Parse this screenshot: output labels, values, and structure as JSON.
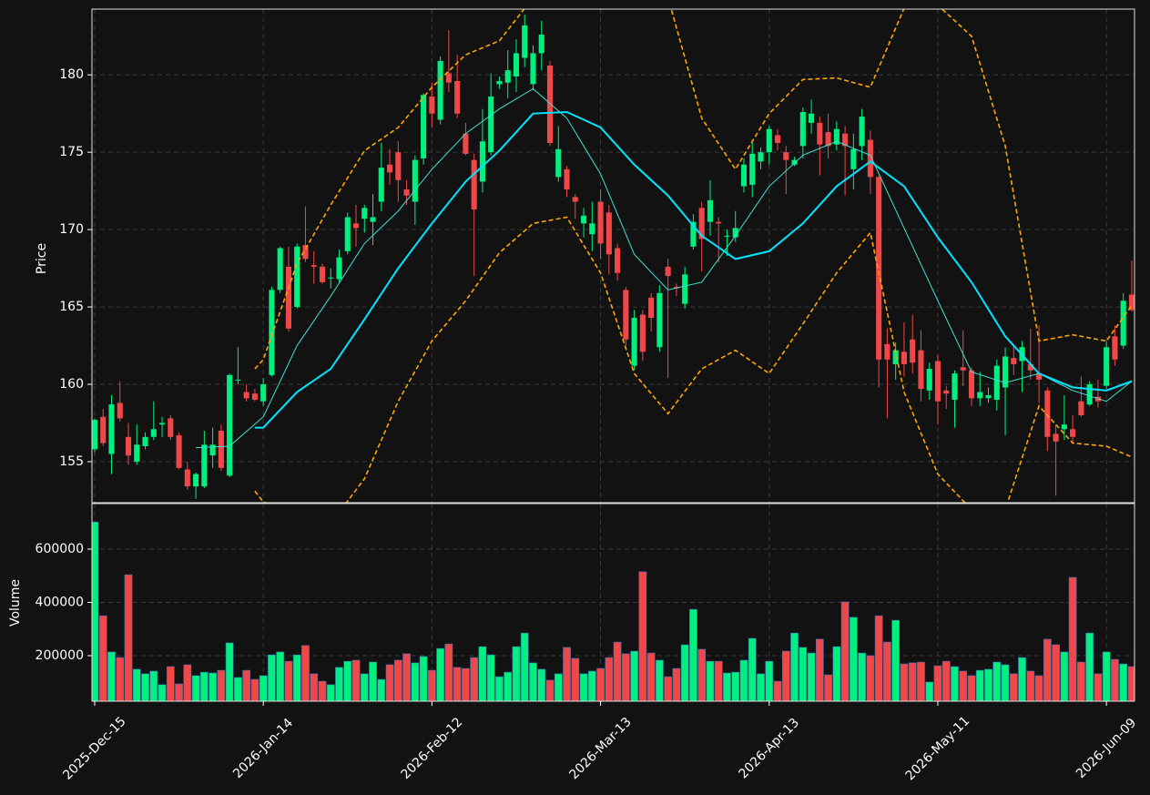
{
  "chart_data": [
    {
      "type": "candlestick",
      "ylabel": "Price",
      "categories": [
        "2025-Dec-15",
        null,
        null,
        null,
        null,
        null,
        null,
        null,
        null,
        null,
        null,
        null,
        null,
        null,
        null,
        null,
        null,
        null,
        null,
        null,
        "2026-Jan-14",
        null,
        null,
        null,
        null,
        null,
        null,
        null,
        null,
        null,
        null,
        null,
        null,
        null,
        null,
        null,
        null,
        null,
        null,
        null,
        "2026-Feb-12",
        null,
        null,
        null,
        null,
        null,
        null,
        null,
        null,
        null,
        null,
        null,
        null,
        null,
        null,
        null,
        null,
        null,
        null,
        null,
        "2026-Mar-13",
        null,
        null,
        null,
        null,
        null,
        null,
        null,
        null,
        null,
        null,
        null,
        null,
        null,
        null,
        null,
        null,
        null,
        null,
        null,
        "2026-Apr-13",
        null,
        null,
        null,
        null,
        null,
        null,
        null,
        null,
        null,
        null,
        null,
        null,
        null,
        null,
        null,
        null,
        null,
        null,
        null,
        "2026-May-11",
        null,
        null,
        null,
        null,
        null,
        null,
        null,
        null,
        null,
        null,
        null,
        null,
        null,
        null,
        null,
        null,
        null,
        null,
        null,
        "2026-Jun-09",
        null,
        null,
        null
      ],
      "open": [
        155.8,
        157.9,
        155.5,
        158.8,
        156.6,
        155.0,
        156.0,
        156.6,
        157.4,
        157.8,
        156.7,
        154.5,
        153.4,
        153.4,
        155.4,
        157.0,
        154.1,
        160.3,
        159.5,
        159.4,
        158.9,
        160.6,
        166.1,
        167.6,
        165.0,
        169.0,
        167.7,
        167.6,
        166.9,
        166.8,
        168.6,
        170.4,
        170.7,
        170.5,
        171.8,
        174.2,
        175.0,
        172.6,
        171.8,
        174.6,
        178.6,
        177.1,
        180.1,
        179.6,
        176.2,
        174.5,
        173.1,
        175.0,
        179.4,
        179.5,
        179.9,
        181.1,
        179.4,
        181.4,
        180.6,
        173.4,
        173.9,
        172.1,
        170.4,
        169.7,
        171.8,
        171.1,
        168.8,
        166.1,
        161.2,
        164.5,
        165.6,
        162.4,
        167.6,
        166.3,
        165.2,
        168.9,
        171.4,
        170.5,
        170.5,
        169.6,
        169.5,
        172.8,
        172.9,
        174.4,
        175.0,
        176.1,
        175.0,
        174.2,
        175.4,
        176.9,
        176.9,
        176.3,
        175.5,
        176.2,
        173.9,
        175.4,
        175.8,
        173.4,
        162.6,
        161.3,
        162.1,
        162.9,
        162.2,
        159.6,
        161.5,
        159.6,
        159.0,
        161.1,
        160.9,
        159.1,
        159.1,
        159.0,
        159.8,
        161.7,
        161.5,
        161.3,
        160.7,
        159.6,
        156.8,
        157.1,
        157.1,
        158.9,
        158.7,
        159.2,
        159.9,
        163.1,
        162.5,
        165.8
      ],
      "high": [
        157.8,
        158.4,
        159.3,
        160.2,
        157.5,
        157.4,
        156.9,
        158.9,
        157.9,
        158.0,
        156.9,
        155.0,
        154.3,
        157.0,
        157.2,
        157.4,
        160.7,
        162.4,
        160.0,
        159.7,
        160.4,
        166.3,
        168.9,
        168.9,
        169.1,
        171.5,
        168.6,
        167.8,
        167.5,
        168.7,
        171.1,
        171.6,
        171.6,
        172.3,
        175.6,
        175.2,
        175.7,
        173.2,
        174.8,
        178.8,
        179.5,
        181.2,
        182.9,
        181.3,
        176.9,
        174.9,
        177.8,
        180.1,
        179.9,
        181.6,
        182.3,
        183.9,
        181.9,
        183.5,
        180.9,
        176.7,
        174.1,
        172.3,
        171.4,
        171.8,
        172.6,
        171.6,
        169.1,
        166.3,
        164.8,
        164.8,
        165.9,
        166.4,
        168.1,
        166.5,
        167.6,
        171.0,
        171.8,
        173.2,
        170.8,
        170.0,
        171.2,
        174.6,
        175.8,
        175.3,
        176.7,
        176.5,
        175.4,
        174.7,
        177.9,
        178.4,
        177.3,
        177.5,
        177.0,
        176.7,
        176.2,
        177.8,
        176.4,
        173.5,
        163.6,
        162.7,
        164.0,
        164.5,
        163.5,
        161.4,
        161.9,
        159.9,
        160.9,
        163.5,
        161.1,
        160.8,
        159.8,
        161.6,
        162.4,
        162.6,
        162.8,
        163.6,
        163.8,
        159.8,
        157.4,
        159.3,
        158.0,
        160.5,
        160.2,
        160.3,
        162.8,
        163.8,
        165.9,
        168.0
      ],
      "low": [
        155.6,
        156.0,
        154.2,
        157.6,
        154.8,
        154.8,
        155.8,
        156.4,
        156.6,
        156.4,
        154.5,
        153.2,
        152.6,
        153.3,
        154.6,
        154.4,
        154.0,
        160.0,
        158.9,
        158.9,
        158.6,
        160.5,
        165.9,
        163.4,
        164.9,
        167.9,
        166.5,
        166.5,
        166.2,
        166.6,
        168.4,
        168.9,
        169.8,
        169.0,
        171.2,
        172.9,
        171.8,
        171.6,
        170.3,
        174.2,
        176.6,
        176.8,
        178.9,
        177.2,
        174.8,
        167.0,
        172.4,
        174.8,
        179.1,
        178.5,
        178.9,
        180.5,
        179.0,
        180.3,
        175.4,
        173.1,
        172.1,
        170.7,
        169.5,
        168.6,
        168.1,
        167.1,
        166.7,
        162.5,
        160.9,
        161.5,
        163.4,
        162.1,
        160.4,
        165.7,
        164.9,
        168.7,
        167.3,
        169.6,
        167.9,
        168.3,
        169.2,
        172.4,
        172.1,
        173.9,
        174.2,
        175.1,
        172.3,
        174.1,
        174.6,
        176.2,
        173.5,
        174.6,
        175.1,
        172.2,
        172.6,
        174.5,
        172.3,
        159.8,
        157.8,
        160.3,
        160.5,
        160.7,
        158.9,
        159.0,
        157.4,
        158.4,
        157.2,
        159.9,
        158.6,
        158.6,
        158.8,
        158.3,
        156.7,
        160.6,
        159.5,
        160.3,
        158.8,
        155.7,
        152.8,
        156.4,
        156.2,
        157.9,
        158.6,
        158.5,
        159.7,
        161.2,
        162.3,
        164.7
      ],
      "close": [
        157.7,
        156.2,
        158.7,
        157.8,
        155.4,
        156.1,
        156.6,
        157.1,
        157.5,
        156.6,
        154.6,
        153.4,
        154.2,
        156.1,
        156.1,
        154.6,
        160.6,
        160.3,
        159.1,
        159.0,
        160.0,
        166.1,
        168.8,
        163.6,
        168.9,
        168.1,
        167.6,
        166.6,
        166.9,
        168.2,
        170.8,
        170.1,
        171.4,
        170.8,
        174.0,
        173.7,
        173.2,
        172.2,
        174.5,
        178.7,
        177.5,
        180.9,
        179.5,
        177.5,
        174.9,
        171.3,
        175.7,
        178.6,
        179.6,
        180.3,
        181.4,
        183.2,
        181.4,
        182.6,
        175.6,
        175.2,
        172.6,
        171.8,
        170.9,
        170.4,
        169.1,
        168.4,
        167.2,
        162.9,
        164.3,
        162.1,
        164.3,
        165.9,
        167.0,
        166.2,
        167.1,
        170.5,
        169.4,
        171.9,
        170.4,
        169.6,
        170.1,
        174.2,
        174.9,
        175.0,
        176.5,
        175.6,
        174.5,
        174.5,
        177.6,
        177.5,
        175.5,
        175.4,
        176.5,
        175.4,
        175.2,
        177.3,
        173.4,
        161.6,
        161.6,
        162.2,
        161.3,
        161.4,
        159.7,
        161.0,
        158.9,
        159.4,
        160.7,
        160.9,
        159.1,
        159.5,
        159.3,
        161.2,
        161.8,
        161.3,
        162.4,
        160.9,
        160.3,
        156.6,
        156.3,
        157.4,
        156.6,
        158.0,
        160.0,
        158.9,
        162.4,
        161.6,
        165.4,
        164.8
      ],
      "up_color": "#00f080",
      "down_color": "#f04848",
      "overlays": [
        {
          "color": "#ffa500",
          "width": 1.6,
          "dash": true,
          "x": [
            19,
            20,
            24,
            28,
            32,
            36,
            40,
            44,
            48,
            52,
            56,
            60,
            64,
            68,
            72,
            76,
            80,
            84,
            88,
            92,
            96,
            100,
            104,
            108,
            112,
            116,
            120,
            123
          ],
          "values": [
            161.0,
            161.6,
            167.8,
            171.6,
            175.1,
            176.6,
            179.2,
            181.3,
            182.2,
            185.0,
            185.8,
            186.5,
            186.0,
            185.0,
            177.2,
            173.9,
            177.5,
            179.7,
            179.8,
            179.2,
            184.3,
            184.5,
            182.5,
            175.4,
            162.8,
            163.2,
            162.8,
            165.1
          ]
        },
        {
          "color": "#ffa500",
          "width": 1.6,
          "dash": true,
          "x": [
            19,
            20,
            24,
            28,
            32,
            36,
            40,
            44,
            48,
            52,
            56,
            60,
            64,
            68,
            72,
            76,
            80,
            84,
            88,
            92,
            96,
            100,
            104,
            108,
            112,
            116,
            120,
            123
          ],
          "values": [
            153.1,
            152.4,
            151.5,
            151.0,
            153.9,
            158.9,
            162.8,
            165.4,
            168.5,
            170.4,
            170.8,
            167.2,
            160.7,
            158.1,
            161.0,
            162.2,
            160.7,
            163.9,
            167.2,
            169.8,
            159.5,
            154.2,
            151.9,
            151.9,
            158.6,
            156.2,
            156.0,
            155.3
          ]
        },
        {
          "color": "#40e0d0",
          "width": 1,
          "dash": false,
          "x": [
            12,
            16,
            20,
            24,
            28,
            32,
            36,
            40,
            44,
            48,
            52,
            56,
            60,
            64,
            68,
            72,
            76,
            80,
            84,
            88,
            92,
            96,
            100,
            104,
            108,
            112,
            116,
            120,
            123
          ],
          "values": [
            155.9,
            156.0,
            157.9,
            162.5,
            165.7,
            169.1,
            171.2,
            173.9,
            176.2,
            177.8,
            179.1,
            177.2,
            173.6,
            168.4,
            166.1,
            166.6,
            169.6,
            172.8,
            174.8,
            175.7,
            174.8,
            170.1,
            165.4,
            160.8,
            160.1,
            160.7,
            159.6,
            158.9,
            160.2
          ]
        },
        {
          "color": "#00e5ff",
          "width": 2,
          "dash": false,
          "x": [
            19,
            20,
            24,
            28,
            32,
            36,
            40,
            44,
            48,
            52,
            56,
            60,
            64,
            68,
            72,
            76,
            80,
            84,
            88,
            92,
            96,
            100,
            104,
            108,
            112,
            116,
            120,
            123
          ],
          "values": [
            157.2,
            157.2,
            159.5,
            161.0,
            164.2,
            167.5,
            170.4,
            173.1,
            175.1,
            177.5,
            177.6,
            176.6,
            174.2,
            172.2,
            169.6,
            168.1,
            168.6,
            170.4,
            172.8,
            174.4,
            172.8,
            169.5,
            166.6,
            163.1,
            160.7,
            159.8,
            159.6,
            160.2
          ]
        }
      ],
      "ylim": [
        152.35,
        184.25
      ],
      "yticks": [
        155,
        160,
        165,
        170,
        175,
        180
      ],
      "grid": true
    },
    {
      "type": "bar",
      "ylabel": "Volume",
      "values": [
        702000,
        350000,
        214000,
        193000,
        504000,
        149000,
        132000,
        142000,
        91000,
        159000,
        94000,
        166000,
        125000,
        138000,
        135000,
        145000,
        248000,
        118000,
        145000,
        111000,
        125000,
        203000,
        214000,
        179000,
        203000,
        238000,
        132000,
        104000,
        91000,
        156000,
        179000,
        183000,
        132000,
        176000,
        111000,
        166000,
        183000,
        207000,
        173000,
        197000,
        145000,
        227000,
        244000,
        156000,
        152000,
        193000,
        234000,
        203000,
        121000,
        138000,
        234000,
        285000,
        173000,
        149000,
        108000,
        132000,
        231000,
        190000,
        132000,
        142000,
        152000,
        193000,
        251000,
        207000,
        217000,
        515000,
        210000,
        183000,
        121000,
        152000,
        241000,
        374000,
        224000,
        179000,
        179000,
        135000,
        138000,
        183000,
        265000,
        132000,
        179000,
        104000,
        217000,
        285000,
        231000,
        210000,
        262000,
        128000,
        234000,
        402000,
        344000,
        210000,
        200000,
        350000,
        251000,
        333000,
        169000,
        173000,
        176000,
        101000,
        162000,
        179000,
        159000,
        142000,
        125000,
        145000,
        149000,
        176000,
        166000,
        132000,
        193000,
        142000,
        125000,
        262000,
        241000,
        214000,
        494000,
        176000,
        285000,
        132000,
        214000,
        186000,
        169000,
        159000
      ],
      "ylim": [
        29000,
        771000
      ],
      "yticks": [
        200000,
        400000,
        600000
      ],
      "grid": true
    }
  ]
}
